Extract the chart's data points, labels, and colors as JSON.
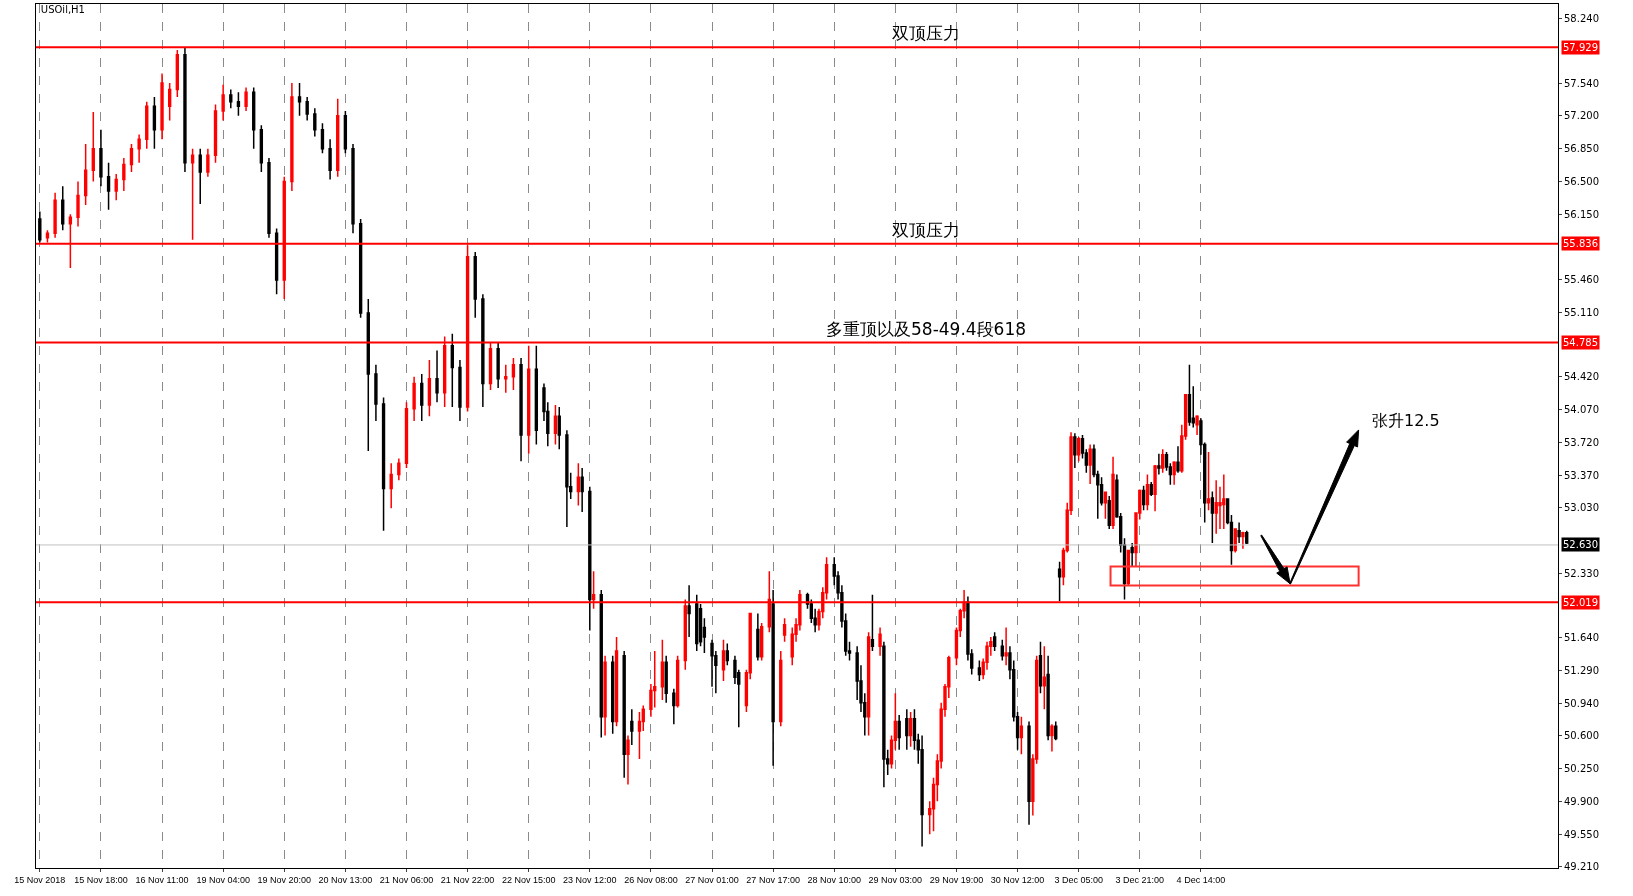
{
  "chart_data": {
    "type": "candlestick",
    "title": "USOil,H1",
    "categories": [
      "15 Nov 2018",
      null,
      null,
      null,
      null,
      null,
      null,
      null,
      null,
      null,
      null,
      null,
      null,
      null,
      null,
      null,
      "15 Nov 18:00",
      null,
      null,
      null,
      null,
      null,
      null,
      null,
      null,
      null,
      null,
      null,
      null,
      null,
      null,
      null,
      "16 Nov 11:00",
      null,
      null,
      null,
      null,
      null,
      null,
      null,
      null,
      null,
      null,
      null,
      null,
      null,
      null,
      null,
      "19 Nov 04:00",
      null,
      null,
      null,
      null,
      null,
      null,
      null,
      null,
      null,
      null,
      null,
      null,
      null,
      null,
      null,
      "19 Nov 20:00",
      null,
      null,
      null,
      null,
      null,
      null,
      null,
      null,
      null,
      null,
      null,
      null,
      null,
      null,
      null,
      "20 Nov 13:00",
      null,
      null,
      null,
      null,
      null,
      null,
      null,
      null,
      null,
      null,
      null,
      null,
      null,
      null,
      null,
      "21 Nov 06:00",
      null,
      null,
      null,
      null,
      null,
      null,
      null,
      null,
      null,
      null,
      null,
      null,
      null,
      null,
      null,
      "21 Nov 22:00",
      null,
      null,
      null,
      null,
      null,
      null,
      null,
      null,
      null,
      null,
      null,
      null,
      null,
      null,
      null,
      "22 Nov 15:00",
      null,
      null,
      null,
      null,
      null,
      null,
      null,
      null,
      null,
      null,
      null,
      null,
      null,
      null,
      null,
      "23 Nov 12:00",
      null,
      null,
      null,
      null,
      null,
      null,
      null,
      null,
      null,
      null,
      null,
      null,
      null,
      null,
      null,
      "26 Nov 08:00",
      null,
      null,
      null,
      null,
      null,
      null,
      null,
      null,
      null,
      null,
      null,
      null,
      null,
      null,
      null,
      "27 Nov 01:00",
      null,
      null,
      null,
      null,
      null,
      null,
      null,
      null,
      null,
      null,
      null,
      null,
      null,
      null,
      null,
      "27 Nov 17:00",
      null,
      null,
      null,
      null,
      null,
      null,
      null,
      null,
      null,
      null,
      null,
      null,
      null,
      null,
      null,
      "28 Nov 10:00",
      null,
      null,
      null,
      null,
      null,
      null,
      null,
      null,
      null,
      null,
      null,
      null,
      null,
      null,
      null,
      "29 Nov 03:00",
      null,
      null,
      null,
      null,
      null,
      null,
      null,
      null,
      null,
      null,
      null,
      null,
      null,
      null,
      null,
      "29 Nov 19:00",
      null,
      null,
      null,
      null,
      null,
      null,
      null,
      null,
      null,
      null,
      null,
      null,
      null,
      null,
      null,
      "30 Nov 12:00",
      null,
      null,
      null,
      null,
      null,
      null,
      null,
      null,
      null,
      null,
      null,
      null,
      null,
      null,
      null,
      "3 Dec 05:00",
      null,
      null,
      null,
      null,
      null,
      null,
      null,
      null,
      null,
      null,
      null,
      null,
      null,
      null,
      null,
      "3 Dec 21:00",
      null,
      null,
      null,
      null,
      null,
      null,
      null,
      null,
      null,
      null,
      null,
      null,
      null,
      null,
      null,
      "4 Dec 14:00",
      null,
      null,
      null,
      null,
      null,
      null,
      null,
      null,
      null,
      null,
      null,
      null,
      null,
      null,
      null,
      null,
      null,
      null,
      null,
      null,
      null,
      null,
      null,
      null,
      null,
      null,
      null,
      null,
      null,
      null,
      null,
      null,
      null,
      null,
      null,
      null,
      null,
      null,
      null,
      null,
      null,
      null,
      null,
      null,
      null,
      null,
      null,
      null,
      null,
      null,
      null,
      null,
      null,
      null,
      null,
      null,
      null,
      null,
      null,
      null,
      null,
      null,
      null,
      null,
      null,
      null,
      null,
      null,
      null,
      null,
      null,
      null,
      null,
      null,
      null,
      null,
      null,
      null,
      null,
      null,
      null,
      null,
      null,
      null,
      null,
      null,
      null,
      null,
      null,
      null,
      null,
      null,
      null
    ],
    "ohlc": [
      [
        56.1,
        56.18,
        55.85,
        55.88
      ],
      null,
      [
        55.9,
        55.98,
        55.85,
        55.95
      ],
      null,
      [
        55.95,
        56.38,
        55.9,
        56.3
      ],
      null,
      [
        56.3,
        56.45,
        55.98,
        56.05
      ],
      null,
      [
        56.05,
        56.15,
        55.58,
        56.12
      ],
      null,
      [
        56.12,
        56.5,
        56.02,
        56.35
      ],
      null,
      [
        56.35,
        56.9,
        56.25,
        56.62
      ],
      null,
      [
        56.62,
        57.24,
        56.5,
        56.85
      ],
      null,
      [
        56.85,
        57.05,
        56.45,
        56.55
      ],
      null,
      [
        56.55,
        56.7,
        56.2,
        56.4
      ],
      null,
      [
        56.4,
        56.58,
        56.3,
        56.52
      ],
      null,
      [
        56.52,
        56.75,
        56.4,
        56.68
      ],
      null,
      [
        56.68,
        56.9,
        56.6,
        56.85
      ],
      null,
      [
        56.85,
        57.0,
        56.7,
        56.95
      ],
      null,
      [
        56.95,
        57.35,
        56.85,
        57.3
      ],
      null,
      [
        57.3,
        57.4,
        56.85,
        57.05
      ],
      null,
      [
        57.05,
        57.65,
        56.95,
        57.55
      ],
      null,
      [
        57.3,
        57.55,
        57.15,
        57.48
      ],
      null,
      [
        57.48,
        57.9,
        57.4,
        57.85
      ],
      null,
      [
        57.85,
        57.93,
        56.6,
        56.7
      ],
      null,
      [
        56.7,
        56.85,
        55.88,
        56.78
      ],
      null,
      [
        56.78,
        56.85,
        56.26,
        56.6
      ],
      null,
      [
        56.6,
        56.85,
        56.55,
        56.78
      ],
      null,
      [
        56.78,
        57.32,
        56.7,
        57.25
      ],
      null,
      [
        57.25,
        57.53,
        57.15,
        57.42
      ],
      null,
      [
        57.42,
        57.48,
        57.28,
        57.35
      ],
      null,
      [
        57.35,
        57.45,
        57.2,
        57.3
      ],
      null,
      [
        57.3,
        57.5,
        57.25,
        57.45
      ],
      null,
      [
        57.45,
        57.5,
        56.85,
        57.05
      ],
      null,
      [
        57.05,
        57.1,
        56.6,
        56.7
      ],
      null,
      [
        56.7,
        56.75,
        55.9,
        55.95
      ],
      null,
      [
        55.95,
        56.0,
        55.3,
        55.45
      ],
      null,
      [
        55.45,
        56.55,
        55.25,
        56.5
      ],
      null,
      [
        56.5,
        57.55,
        56.4,
        57.4
      ],
      null,
      [
        57.4,
        57.55,
        57.2,
        57.35
      ],
      null,
      [
        57.35,
        57.4,
        57.15,
        57.22
      ],
      null,
      [
        57.22,
        57.28,
        56.98,
        57.05
      ],
      null,
      [
        57.05,
        57.12,
        56.8,
        56.85
      ],
      null,
      [
        56.85,
        56.95,
        56.52,
        56.62
      ],
      null,
      [
        56.62,
        57.38,
        56.55,
        57.2
      ],
      null,
      [
        57.2,
        57.25,
        56.8,
        56.85
      ],
      null,
      [
        56.85,
        56.9,
        55.95,
        56.05
      ],
      null,
      [
        56.05,
        56.1,
        55.05,
        55.1
      ],
      null,
      [
        55.1,
        55.25,
        53.63,
        54.45
      ],
      null,
      [
        54.45,
        54.55,
        53.95,
        54.13
      ],
      null,
      [
        54.13,
        54.2,
        52.78,
        53.23
      ],
      null,
      [
        53.23,
        53.5,
        53.02,
        53.38
      ],
      null,
      [
        53.38,
        53.55,
        53.32,
        53.5
      ],
      null,
      [
        53.5,
        54.15,
        53.45,
        54.08
      ],
      null,
      [
        54.08,
        54.42,
        53.95,
        54.35
      ],
      null,
      [
        54.35,
        54.45,
        53.95,
        54.12
      ],
      null,
      [
        54.12,
        54.6,
        54.0,
        54.4
      ],
      null,
      [
        54.4,
        54.7,
        54.15,
        54.25
      ],
      null,
      [
        54.25,
        54.85,
        54.1,
        54.75
      ],
      null,
      [
        54.75,
        54.88,
        54.1,
        54.52
      ],
      null,
      [
        54.52,
        54.6,
        53.95,
        54.1
      ],
      null,
      [
        54.1,
        55.82,
        54.05,
        55.7
      ],
      null,
      [
        55.7,
        55.75,
        55.05,
        55.25
      ],
      null,
      [
        55.25,
        55.3,
        54.1,
        54.35
      ],
      null,
      [
        54.35,
        54.78,
        54.28,
        54.72
      ],
      null,
      [
        54.72,
        54.78,
        54.3,
        54.4
      ],
      null,
      [
        54.4,
        54.55,
        54.25,
        54.42
      ],
      null,
      [
        54.42,
        54.62,
        54.28,
        54.55
      ],
      null,
      [
        54.55,
        54.62,
        53.52,
        53.8
      ],
      null,
      [
        53.8,
        54.75,
        53.6,
        54.5
      ],
      null,
      [
        54.5,
        54.75,
        53.7,
        53.85
      ],
      null,
      [
        54.3,
        54.35,
        53.95,
        54.05
      ],
      [
        54.05,
        54.15,
        53.68,
        53.82
      ],
      null,
      [
        53.82,
        54.12,
        53.7,
        54.0
      ],
      [
        54.0,
        54.1,
        53.65,
        53.8
      ],
      null,
      [
        53.8,
        53.85,
        52.82,
        53.25
      ],
      [
        53.25,
        53.4,
        53.12,
        53.2
      ],
      null,
      [
        53.2,
        53.5,
        53.05,
        53.35
      ],
      [
        53.35,
        53.45,
        52.98,
        53.2
      ],
      null,
      [
        53.2,
        53.25,
        51.72,
        52.05
      ],
      [
        52.05,
        52.35,
        51.95,
        52.1
      ],
      null,
      [
        52.1,
        52.15,
        50.58,
        50.8
      ],
      [
        50.8,
        51.45,
        50.6,
        51.38
      ],
      null,
      [
        51.38,
        51.45,
        50.62,
        50.75
      ],
      [
        50.75,
        51.65,
        50.7,
        51.5
      ],
      null,
      [
        51.45,
        51.5,
        50.15,
        50.4
      ],
      [
        50.4,
        50.6,
        50.08,
        50.55
      ],
      [
        50.75,
        50.88,
        50.5,
        50.65
      ],
      null,
      [
        50.65,
        50.85,
        50.35,
        50.75
      ],
      [
        50.75,
        50.92,
        50.65,
        50.88
      ],
      null,
      [
        50.88,
        51.15,
        50.8,
        51.08
      ],
      [
        51.08,
        51.5,
        50.9,
        51.12
      ],
      null,
      [
        51.12,
        51.62,
        50.98,
        51.38
      ],
      [
        51.38,
        51.45,
        50.95,
        51.05
      ],
      null,
      [
        51.05,
        51.1,
        50.72,
        50.92
      ],
      [
        50.92,
        51.45,
        50.9,
        51.4
      ],
      null,
      [
        51.4,
        52.05,
        51.3,
        51.98
      ],
      [
        51.98,
        52.2,
        51.65,
        51.9
      ],
      null,
      [
        52.0,
        52.1,
        51.5,
        51.58
      ],
      [
        51.95,
        52.0,
        51.55,
        51.6
      ],
      [
        51.75,
        51.85,
        51.48,
        51.65
      ],
      null,
      [
        51.58,
        51.62,
        51.12,
        51.45
      ],
      [
        51.45,
        51.5,
        51.05,
        51.35
      ],
      null,
      [
        51.3,
        51.62,
        51.18,
        51.5
      ],
      [
        51.5,
        51.58,
        51.35,
        51.4
      ],
      null,
      [
        51.4,
        51.45,
        51.15,
        51.22
      ],
      [
        51.27,
        51.3,
        50.69,
        51.15
      ],
      null,
      [
        50.92,
        51.3,
        50.85,
        51.27
      ],
      [
        51.27,
        51.9,
        51.2,
        51.9
      ],
      null,
      [
        51.73,
        51.9,
        51.4,
        51.44
      ],
      [
        51.44,
        51.8,
        51.4,
        51.76
      ],
      null,
      [
        51.76,
        52.35,
        51.7,
        52.05
      ],
      [
        52.0,
        52.15,
        50.28,
        50.75
      ],
      null,
      [
        50.75,
        51.5,
        50.7,
        51.4
      ],
      [
        51.67,
        51.85,
        51.6,
        51.78
      ],
      null,
      [
        51.44,
        51.75,
        51.35,
        51.68
      ],
      [
        51.68,
        51.85,
        51.6,
        51.78
      ],
      [
        51.78,
        52.15,
        51.72,
        52.1
      ],
      null,
      [
        52.1,
        52.12,
        51.95,
        52.0
      ],
      [
        52.0,
        52.05,
        51.8,
        51.85
      ],
      [
        51.85,
        51.95,
        51.7,
        51.78
      ],
      [
        51.78,
        51.95,
        51.72,
        51.92
      ],
      [
        51.92,
        52.18,
        51.85,
        52.12
      ],
      [
        52.12,
        52.5,
        52.05,
        52.42
      ],
      null,
      [
        52.42,
        52.5,
        52.2,
        52.3
      ],
      [
        52.3,
        52.35,
        52.05,
        52.12
      ],
      [
        52.12,
        52.2,
        51.75,
        51.82
      ],
      [
        51.82,
        51.9,
        51.45,
        51.5
      ],
      [
        51.5,
        51.6,
        51.4,
        51.48
      ],
      null,
      [
        51.48,
        51.55,
        50.98,
        51.18
      ],
      [
        51.18,
        51.35,
        50.85,
        50.95
      ],
      [
        50.95,
        51.05,
        50.6,
        50.8
      ],
      [
        50.8,
        51.7,
        50.6,
        51.65
      ],
      [
        51.62,
        52.1,
        51.5,
        51.55
      ],
      null,
      [
        51.55,
        51.75,
        51.45,
        51.68
      ],
      [
        51.55,
        51.6,
        50.05,
        50.35
      ],
      [
        50.35,
        50.45,
        50.18,
        50.3
      ],
      [
        50.3,
        50.6,
        50.25,
        50.55
      ],
      [
        50.55,
        51.05,
        50.45,
        50.75
      ],
      [
        50.75,
        50.82,
        50.45,
        50.58
      ],
      null,
      [
        50.78,
        50.88,
        50.45,
        50.6
      ],
      [
        50.6,
        50.85,
        50.48,
        50.78
      ],
      [
        50.78,
        50.88,
        50.45,
        50.55
      ],
      [
        50.55,
        50.62,
        50.3,
        50.45
      ],
      [
        50.45,
        50.6,
        49.42,
        49.76
      ],
      null,
      [
        49.76,
        49.9,
        49.55,
        49.82
      ],
      [
        49.82,
        50.15,
        49.58,
        50.08
      ],
      [
        50.08,
        50.4,
        49.9,
        50.33
      ],
      [
        50.33,
        50.95,
        50.25,
        50.88
      ],
      [
        50.88,
        51.15,
        50.8,
        51.12
      ],
      [
        51.12,
        51.45,
        51.0,
        51.43
      ],
      null,
      [
        51.43,
        51.75,
        51.35,
        51.72
      ],
      [
        51.72,
        51.95,
        51.65,
        51.93
      ],
      [
        51.93,
        52.15,
        51.85,
        52.02
      ],
      [
        52.02,
        52.08,
        51.4,
        51.47
      ],
      [
        51.47,
        51.52,
        51.25,
        51.32
      ],
      null,
      [
        51.32,
        51.4,
        51.18,
        51.25
      ],
      [
        51.25,
        51.42,
        51.2,
        51.38
      ],
      [
        51.38,
        51.6,
        51.3,
        51.55
      ],
      [
        51.55,
        51.65,
        51.45,
        51.6
      ],
      [
        51.65,
        51.7,
        51.5,
        51.55
      ],
      null,
      [
        51.55,
        51.62,
        51.4,
        51.45
      ],
      [
        51.45,
        51.75,
        51.35,
        51.48
      ],
      [
        51.48,
        51.55,
        51.2,
        51.3
      ],
      [
        51.3,
        51.4,
        50.75,
        50.8
      ],
      [
        50.8,
        50.85,
        50.45,
        50.58
      ],
      [
        50.58,
        50.8,
        50.4,
        50.7
      ],
      null,
      [
        50.7,
        50.75,
        49.65,
        49.9
      ],
      [
        49.9,
        50.4,
        49.75,
        50.35
      ],
      [
        50.35,
        51.45,
        50.3,
        51.4
      ],
      [
        51.45,
        51.6,
        51.05,
        51.13
      ],
      [
        51.13,
        51.55,
        50.88,
        51.22
      ],
      [
        51.25,
        51.45,
        50.55,
        50.6
      ],
      [
        50.6,
        50.72,
        50.43,
        50.7
      ],
      [
        50.7,
        50.75,
        50.55,
        50.57
      ],
      [
        52.37,
        52.45,
        52.03,
        52.29
      ],
      [
        52.29,
        52.6,
        52.2,
        52.57
      ],
      [
        52.57,
        53.08,
        52.55,
        53.0
      ],
      [
        53.0,
        53.83,
        52.95,
        53.78
      ],
      [
        53.78,
        53.82,
        53.45,
        53.59
      ],
      [
        53.59,
        53.78,
        53.52,
        53.76
      ],
      [
        53.76,
        53.8,
        53.55,
        53.61
      ],
      [
        53.61,
        53.65,
        53.4,
        53.48
      ],
      [
        53.48,
        53.7,
        53.28,
        53.65
      ],
      [
        53.65,
        53.7,
        53.35,
        53.38
      ],
      [
        53.38,
        53.42,
        52.91,
        53.27
      ],
      [
        53.27,
        53.35,
        53.05,
        53.08
      ],
      [
        53.08,
        53.2,
        52.91,
        53.19
      ],
      [
        53.1,
        53.15,
        52.8,
        52.84
      ],
      [
        52.84,
        53.57,
        52.8,
        53.38
      ],
      [
        53.32,
        53.38,
        52.92,
        52.93
      ],
      [
        52.93,
        52.97,
        52.55,
        52.63
      ],
      [
        52.63,
        52.7,
        52.05,
        52.22
      ],
      [
        52.22,
        52.58,
        52.2,
        52.57
      ],
      [
        52.6,
        52.65,
        52.4,
        52.55
      ],
      [
        52.55,
        52.97,
        52.4,
        52.97
      ],
      [
        52.97,
        53.22,
        52.9,
        53.21
      ],
      [
        53.21,
        53.26,
        53.0,
        53.06
      ],
      [
        53.06,
        53.38,
        53.0,
        53.27
      ],
      [
        53.27,
        53.3,
        53.15,
        53.17
      ],
      [
        53.17,
        53.48,
        52.99,
        53.47
      ],
      [
        53.47,
        53.6,
        53.38,
        53.45
      ],
      [
        53.45,
        53.65,
        53.4,
        53.59
      ],
      [
        53.59,
        53.62,
        53.42,
        53.46
      ],
      [
        53.46,
        53.5,
        53.27,
        53.38
      ],
      [
        53.38,
        53.52,
        53.27,
        53.51
      ],
      [
        53.51,
        53.68,
        53.4,
        53.42
      ],
      [
        53.42,
        53.91,
        53.4,
        53.79
      ],
      [
        53.79,
        54.23,
        53.75,
        54.23
      ],
      [
        54.23,
        54.55,
        53.9,
        53.94
      ],
      [
        53.98,
        54.32,
        53.88,
        53.93
      ],
      [
        53.91,
        54.01,
        53.8,
        54.0
      ],
      [
        53.95,
        53.98,
        53.59,
        53.7
      ],
      [
        53.7,
        53.72,
        52.87,
        53.08
      ],
      [
        53.08,
        53.62,
        53.0,
        53.12
      ],
      [
        53.13,
        53.2,
        52.65,
        52.97
      ],
      [
        52.97,
        53.32,
        52.75,
        53.08
      ],
      [
        53.05,
        53.25,
        52.8,
        53.08
      ],
      [
        53.06,
        53.38,
        52.8,
        53.12
      ],
      [
        53.12,
        53.12,
        52.85,
        52.87
      ],
      [
        52.87,
        52.95,
        52.42,
        52.57
      ],
      [
        52.57,
        52.8,
        52.55,
        52.8
      ],
      [
        52.78,
        52.87,
        52.65,
        52.72
      ],
      [
        52.72,
        52.77,
        52.59,
        52.76
      ],
      [
        52.76,
        52.78,
        52.64,
        52.65
      ],
      null,
      null,
      null,
      null,
      null,
      null,
      null,
      null,
      null,
      null,
      null,
      null,
      null,
      null,
      null,
      null,
      null,
      null,
      null,
      null,
      null,
      null,
      null,
      null,
      null,
      null,
      null,
      null,
      null,
      null,
      null,
      null,
      null,
      null,
      null,
      null,
      null,
      null,
      null,
      null,
      null,
      null,
      null,
      null,
      null,
      null,
      null,
      null,
      null,
      null,
      null,
      null,
      null,
      null,
      null,
      null,
      null,
      null,
      null,
      null,
      null,
      null,
      null,
      null,
      null,
      null,
      null,
      null,
      null,
      null,
      null,
      null,
      null,
      null,
      null,
      null,
      null,
      null,
      null,
      null,
      null
    ],
    "colors": [
      "#000000",
      null,
      "#ff0000",
      null,
      "#ff0000",
      null,
      "#000000",
      null,
      "#ff0000",
      null,
      "#ff0000",
      null,
      "#ff0000",
      null,
      "#ff0000",
      null,
      "#000000",
      null,
      "#000000",
      null,
      "#ff0000",
      null,
      "#ff0000",
      null,
      "#ff0000",
      null,
      "#ff0000",
      null,
      "#ff0000",
      null,
      "#000000",
      null,
      "#ff0000",
      null,
      "#ff0000",
      null,
      "#ff0000",
      null,
      "#000000",
      null,
      "#ff0000",
      null,
      "#000000",
      null,
      "#ff0000",
      null,
      "#ff0000",
      null,
      "#ff0000",
      null,
      "#000000",
      null,
      "#000000",
      null,
      "#ff0000",
      null,
      "#000000",
      null,
      "#000000",
      null,
      "#000000",
      null,
      "#000000",
      null,
      "#ff0000",
      null,
      "#ff0000",
      null,
      "#000000",
      null,
      "#000000",
      null,
      "#000000",
      null,
      "#000000",
      null,
      "#000000",
      null,
      "#ff0000",
      null,
      "#000000",
      null,
      "#000000",
      null,
      "#000000",
      null,
      "#000000",
      null,
      "#000000",
      null,
      "#000000",
      null,
      "#ff0000",
      null,
      "#ff0000",
      null,
      "#ff0000",
      null,
      "#ff0000",
      null,
      "#000000",
      null,
      "#ff0000",
      null,
      "#000000",
      null,
      "#ff0000",
      null,
      "#000000",
      null,
      "#000000",
      null,
      "#ff0000",
      null,
      "#000000",
      null,
      "#000000",
      null,
      "#ff0000",
      null,
      "#000000",
      null,
      "#ff0000",
      null,
      "#ff0000",
      null,
      "#000000",
      null,
      "#ff0000",
      null,
      "#000000",
      null,
      "#000000",
      "#000000",
      null,
      "#ff0000",
      "#000000",
      null,
      "#000000",
      "#000000",
      null,
      "#ff0000",
      "#000000",
      null,
      "#000000",
      "#ff0000",
      null,
      "#000000",
      "#ff0000",
      null,
      "#000000",
      "#ff0000",
      null,
      "#000000",
      "#ff0000",
      "#000000",
      null,
      "#ff0000",
      "#ff0000",
      null,
      "#ff0000",
      "#ff0000",
      null,
      "#ff0000",
      "#000000",
      null,
      "#000000",
      "#ff0000",
      null,
      "#ff0000",
      "#000000",
      null,
      "#000000",
      "#000000",
      "#000000",
      null,
      "#000000",
      "#000000",
      null,
      "#ff0000",
      "#000000",
      null,
      "#000000",
      "#000000",
      null,
      "#ff0000",
      "#ff0000",
      null,
      "#000000",
      "#ff0000",
      null,
      "#ff0000",
      "#000000",
      null,
      "#ff0000",
      "#ff0000",
      null,
      "#ff0000",
      "#ff0000",
      "#ff0000",
      null,
      "#000000",
      "#000000",
      "#000000",
      "#ff0000",
      "#ff0000",
      "#ff0000",
      null,
      "#000000",
      "#000000",
      "#000000",
      "#000000",
      "#000000",
      null,
      "#000000",
      "#000000",
      "#000000",
      "#ff0000",
      "#000000",
      null,
      "#ff0000",
      "#000000",
      "#000000",
      "#ff0000",
      "#ff0000",
      "#000000",
      null,
      "#000000",
      "#ff0000",
      "#000000",
      "#000000",
      "#000000",
      null,
      "#ff0000",
      "#ff0000",
      "#ff0000",
      "#ff0000",
      "#ff0000",
      "#ff0000",
      null,
      "#ff0000",
      "#ff0000",
      "#ff0000",
      "#000000",
      "#000000",
      null,
      "#000000",
      "#ff0000",
      "#ff0000",
      "#ff0000",
      "#000000",
      null,
      "#000000",
      "#ff0000",
      "#000000",
      "#000000",
      "#000000",
      "#ff0000",
      null,
      "#000000",
      "#ff0000",
      "#ff0000",
      "#000000",
      "#ff0000",
      "#000000",
      "#ff0000",
      "#000000",
      "#000000",
      "#ff0000",
      "#ff0000",
      "#ff0000",
      "#000000",
      "#ff0000",
      "#000000",
      "#000000",
      "#ff0000",
      "#000000",
      "#000000",
      "#000000",
      "#ff0000",
      "#000000",
      "#ff0000",
      "#000000",
      "#000000",
      "#000000",
      "#ff0000",
      "#000000",
      "#ff0000",
      "#ff0000",
      "#000000",
      "#ff0000",
      "#000000",
      "#ff0000",
      "#000000",
      "#ff0000",
      "#000000",
      "#000000",
      "#ff0000",
      "#000000",
      "#ff0000",
      "#ff0000",
      "#000000",
      "#000000",
      "#ff0000",
      "#000000",
      "#000000",
      "#ff0000",
      "#000000",
      "#ff0000",
      "#ff0000",
      "#ff0000",
      "#000000",
      "#000000",
      "#ff0000",
      "#000000",
      "#ff0000",
      "#000000",
      null,
      null,
      null,
      null,
      null,
      null,
      null,
      null,
      null,
      null,
      null,
      null,
      null,
      null,
      null,
      null,
      null,
      null,
      null,
      null,
      null,
      null,
      null,
      null,
      null,
      null,
      null,
      null,
      null,
      null,
      null,
      null,
      null,
      null,
      null,
      null,
      null,
      null,
      null,
      null,
      null,
      null,
      null,
      null,
      null,
      null,
      null,
      null,
      null,
      null,
      null,
      null,
      null,
      null,
      null,
      null,
      null,
      null,
      null,
      null,
      null,
      null,
      null,
      null,
      null,
      null,
      null,
      null,
      null,
      null,
      null,
      null,
      null,
      null,
      null,
      null,
      null,
      null,
      null,
      null,
      null
    ],
    "ylim": [
      49.19,
      58.39
    ],
    "yticks": [
      {
        "value": 58.24,
        "label": "58.240"
      },
      {
        "value": 57.929,
        "label": "57.929"
      },
      {
        "value": 57.54,
        "label": "57.540"
      },
      {
        "value": 57.2,
        "label": "57.200"
      },
      {
        "value": 56.85,
        "label": "56.850"
      },
      {
        "value": 56.5,
        "label": "56.500"
      },
      {
        "value": 56.15,
        "label": "56.150"
      },
      {
        "value": 55.836,
        "label": "55.836"
      },
      {
        "value": 55.46,
        "label": "55.460"
      },
      {
        "value": 55.11,
        "label": "55.110"
      },
      {
        "value": 54.785,
        "label": "54.785"
      },
      {
        "value": 54.42,
        "label": "54.420"
      },
      {
        "value": 54.07,
        "label": "54.070"
      },
      {
        "value": 53.72,
        "label": "53.720"
      },
      {
        "value": 53.37,
        "label": "53.370"
      },
      {
        "value": 53.03,
        "label": "53.030"
      },
      {
        "value": 52.63,
        "label": "52.630"
      },
      {
        "value": 52.33,
        "label": "52.330"
      },
      {
        "value": 52.019,
        "label": "52.019"
      },
      {
        "value": 51.64,
        "label": "51.640"
      },
      {
        "value": 51.29,
        "label": "51.290"
      },
      {
        "value": 50.94,
        "label": "50.940"
      },
      {
        "value": 50.6,
        "label": "50.600"
      },
      {
        "value": 50.25,
        "label": "50.250"
      },
      {
        "value": 49.9,
        "label": "49.900"
      },
      {
        "value": 49.55,
        "label": "49.550"
      },
      {
        "value": 49.21,
        "label": "49.210"
      }
    ],
    "grid": "x",
    "ref_lines": [
      {
        "axis": "y",
        "value": 57.929,
        "label": "双顶压力",
        "color": "#ff0000"
      },
      {
        "axis": "y",
        "value": 55.836,
        "label": "双顶压力",
        "color": "#ff0000"
      },
      {
        "axis": "y",
        "value": 54.785,
        "label": "多重顶以及58-49.4段618",
        "color": "#ff0000"
      },
      {
        "axis": "y",
        "value": 52.63,
        "color": "#c0c0c0"
      },
      {
        "axis": "y",
        "value": 52.019,
        "color": "#ff0000"
      }
    ],
    "annotations": [
      "张升12.5"
    ]
  }
}
